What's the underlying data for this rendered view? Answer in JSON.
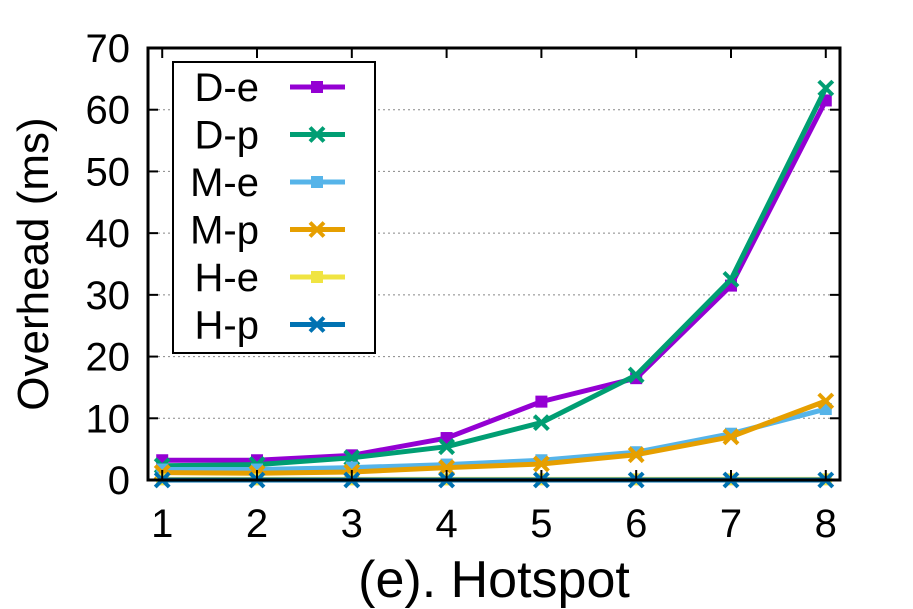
{
  "chart_data": {
    "type": "line",
    "title": "",
    "xlabel": "(e). Hotspot",
    "ylabel": "Overhead (ms)",
    "x": [
      1,
      2,
      3,
      4,
      5,
      6,
      7,
      8
    ],
    "xlim": [
      0.85,
      8.15
    ],
    "ylim": [
      0,
      70
    ],
    "yticks": [
      0,
      10,
      20,
      30,
      40,
      50,
      60,
      70
    ],
    "xticks": [
      1,
      2,
      3,
      4,
      5,
      6,
      7,
      8
    ],
    "grid": "horizontal dotted",
    "legend_position": "top-left",
    "series": [
      {
        "name": "D-e",
        "color": "#9400D3",
        "marker": "square",
        "values": [
          3.2,
          3.2,
          4.0,
          6.8,
          12.7,
          16.5,
          31.5,
          61.5
        ]
      },
      {
        "name": "D-p",
        "color": "#009E73",
        "marker": "cross",
        "values": [
          2.3,
          2.5,
          3.6,
          5.4,
          9.3,
          17.0,
          32.5,
          63.5
        ]
      },
      {
        "name": "M-e",
        "color": "#56B4E9",
        "marker": "square",
        "values": [
          1.7,
          1.7,
          2.0,
          2.5,
          3.2,
          4.5,
          7.5,
          11.5
        ]
      },
      {
        "name": "M-p",
        "color": "#E69F00",
        "marker": "cross",
        "values": [
          1.2,
          1.1,
          1.3,
          2.0,
          2.6,
          4.1,
          7.0,
          12.8
        ]
      },
      {
        "name": "H-e",
        "color": "#F0E442",
        "marker": "square",
        "values": [
          0.1,
          0.1,
          0.1,
          0.1,
          0.1,
          0.1,
          0.1,
          0.1
        ]
      },
      {
        "name": "H-p",
        "color": "#0072B2",
        "marker": "cross",
        "values": [
          0.0,
          0.0,
          0.0,
          0.0,
          0.0,
          0.0,
          0.0,
          0.0
        ]
      }
    ]
  }
}
